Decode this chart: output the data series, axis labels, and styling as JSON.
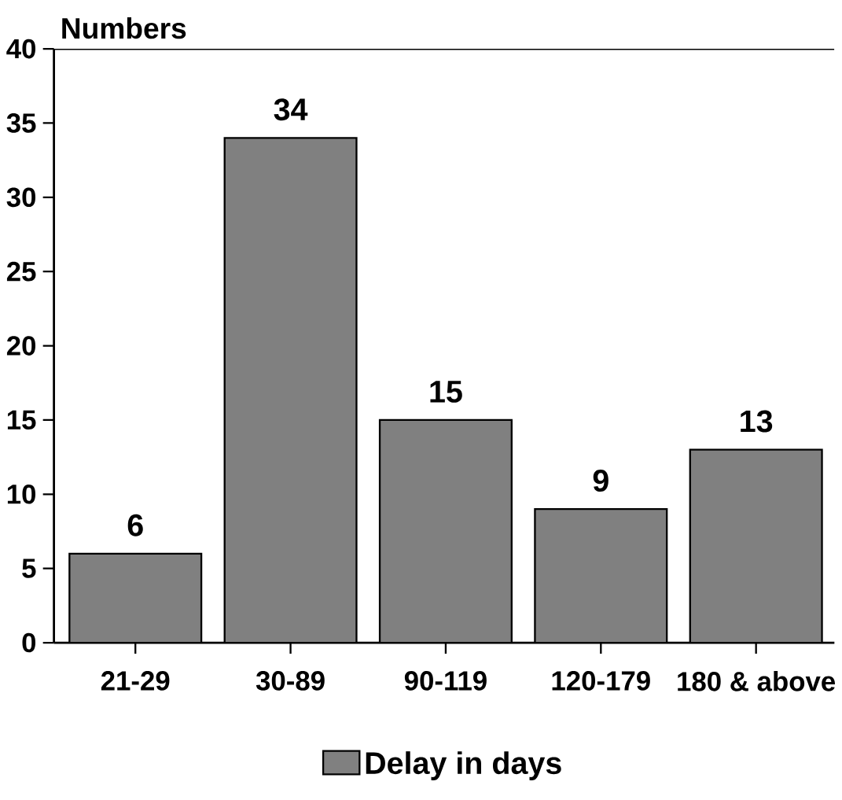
{
  "chart_data": {
    "type": "bar",
    "ylabel": "Numbers",
    "categories": [
      "21-29",
      "30-89",
      "90-119",
      "120-179",
      "180 & above"
    ],
    "series": [
      {
        "name": "Delay in days",
        "color": "#808080",
        "values": [
          6,
          34,
          15,
          9,
          13
        ]
      }
    ],
    "ylim": [
      0,
      40
    ],
    "yticks": [
      0,
      5,
      10,
      15,
      20,
      25,
      30,
      35,
      40
    ],
    "data_labels": true,
    "legend": "bottom",
    "grid": false
  }
}
